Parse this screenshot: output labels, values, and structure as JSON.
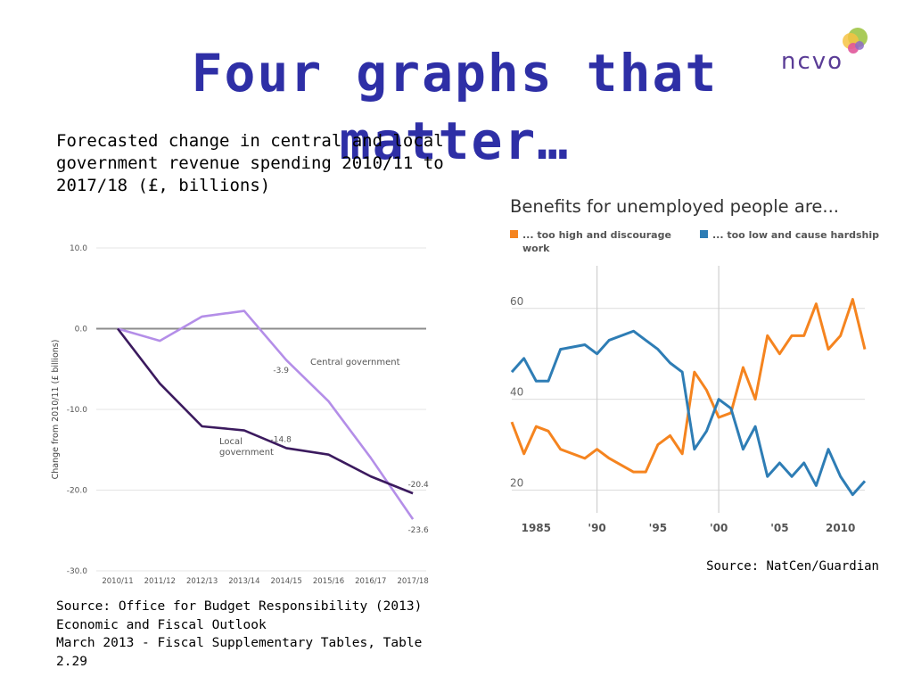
{
  "slide": {
    "title": "Four graphs that matter…",
    "left_caption": "Forecasted change in central and local government revenue spending 2010/11 to 2017/18  (£, billions)",
    "left_source": "Source: Office for Budget Responsibility (2013) Economic and Fiscal Outlook\nMarch 2013 - Fiscal Supplementary Tables, Table 2.29",
    "right_source": "Source: NatCen/Guardian",
    "logo_text": "ncvo",
    "logo_colors": [
      "#9ac23c",
      "#f6c343",
      "#e0569a",
      "#8e6cc7"
    ]
  },
  "chart_data": [
    {
      "type": "line",
      "title": "",
      "xlabel": "",
      "ylabel": "Change from 2010/11 (£ billions)",
      "categories": [
        "2010/11",
        "2011/12",
        "2012/13",
        "2013/14",
        "2014/15",
        "2015/16",
        "2016/17",
        "2017/18"
      ],
      "ylim": [
        -30,
        10
      ],
      "yticks": [
        "10.0",
        "0.0",
        "-10.0",
        "-20.0",
        "-30.0"
      ],
      "grid": true,
      "series": [
        {
          "name": "Central government",
          "color": "#b48ee8",
          "values": [
            0,
            -1.5,
            1.5,
            2.2,
            -3.9,
            -9,
            -16,
            -23.6
          ]
        },
        {
          "name": "Local government",
          "color": "#3b1a5e",
          "values": [
            0,
            -6.8,
            -12.1,
            -12.6,
            -14.8,
            -15.6,
            -18.3,
            -20.4
          ]
        }
      ],
      "annotations": [
        {
          "text": "-3.9",
          "category": "2014/15",
          "value": -3.9
        },
        {
          "text": "-14.8",
          "category": "2014/15",
          "value": -14.8
        },
        {
          "text": "-20.4",
          "category": "2017/18",
          "value": -20.4
        },
        {
          "text": "-23.6",
          "category": "2017/18",
          "value": -23.6
        }
      ],
      "series_labels": [
        {
          "text": "Central government"
        },
        {
          "lines": [
            "Local",
            "government"
          ]
        }
      ]
    },
    {
      "type": "line",
      "title": "Benefits for unemployed people are...",
      "xlabel": "",
      "ylabel": "",
      "xlim": [
        1983,
        2012
      ],
      "ylim": [
        15,
        68
      ],
      "yticks": [
        20,
        40,
        60
      ],
      "xticks": [
        {
          "value": 1985,
          "label": "1985"
        },
        {
          "value": 1990,
          "label": "'90"
        },
        {
          "value": 1995,
          "label": "'95"
        },
        {
          "value": 2000,
          "label": "'00"
        },
        {
          "value": 2005,
          "label": "'05"
        },
        {
          "value": 2010,
          "label": "2010"
        }
      ],
      "vlines": [
        1990,
        2000
      ],
      "legend_position": "top-left",
      "legend": [
        {
          "text": "... too high and discourage",
          "text2": "work",
          "color": "#f5841f"
        },
        {
          "text": "... too low and cause hardship",
          "color": "#2e7db5"
        }
      ],
      "series": [
        {
          "name": "... too high and discourage work",
          "color": "#f5841f",
          "x": [
            1983,
            1984,
            1985,
            1986,
            1987,
            1989,
            1990,
            1991,
            1993,
            1994,
            1995,
            1996,
            1997,
            1998,
            1999,
            2000,
            2001,
            2002,
            2003,
            2004,
            2005,
            2006,
            2007,
            2008,
            2009,
            2010,
            2011,
            2012
          ],
          "values": [
            35,
            28,
            34,
            33,
            29,
            27,
            29,
            27,
            24,
            24,
            30,
            32,
            28,
            46,
            42,
            36,
            37,
            47,
            40,
            54,
            50,
            54,
            54,
            61,
            51,
            54,
            62,
            51
          ]
        },
        {
          "name": "... too low and cause hardship",
          "color": "#2e7db5",
          "x": [
            1983,
            1984,
            1985,
            1986,
            1987,
            1989,
            1990,
            1991,
            1993,
            1994,
            1995,
            1996,
            1997,
            1998,
            1999,
            2000,
            2001,
            2002,
            2003,
            2004,
            2005,
            2006,
            2007,
            2008,
            2009,
            2010,
            2011,
            2012
          ],
          "values": [
            46,
            49,
            44,
            44,
            51,
            52,
            50,
            53,
            55,
            53,
            51,
            48,
            46,
            29,
            33,
            40,
            38,
            29,
            34,
            23,
            26,
            23,
            26,
            21,
            29,
            23,
            19,
            22
          ]
        }
      ]
    }
  ]
}
